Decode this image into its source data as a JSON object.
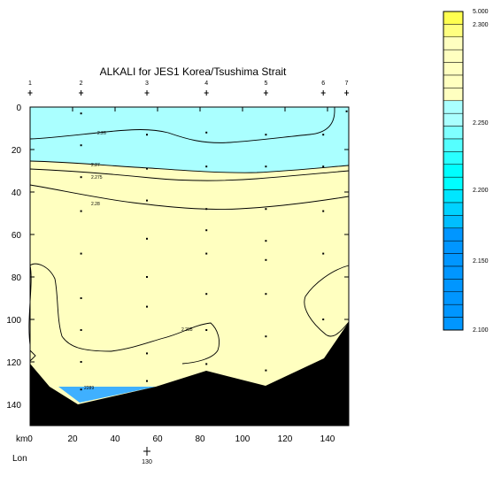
{
  "chart_data": {
    "type": "contour_section",
    "title": "ALKALI for JES1 Korea/Tsushima Strait",
    "x_unit_label": "km",
    "x_ticks": [
      0,
      20,
      40,
      60,
      80,
      100,
      120,
      140
    ],
    "x_range": [
      0,
      150
    ],
    "y_ticks": [
      0,
      20,
      40,
      60,
      80,
      100,
      120,
      140
    ],
    "y_range": [
      0,
      150
    ],
    "y_inverted": true,
    "lon_label": "Lon",
    "lon_tick": {
      "km": 55,
      "label": "130"
    },
    "stations": [
      {
        "label": "1",
        "km": 0
      },
      {
        "label": "2",
        "km": 24
      },
      {
        "label": "3",
        "km": 55
      },
      {
        "label": "4",
        "km": 83
      },
      {
        "label": "5",
        "km": 111
      },
      {
        "label": "6",
        "km": 138
      },
      {
        "label": "7",
        "km": 149
      }
    ],
    "sample_points": [
      [
        24,
        3
      ],
      [
        24,
        18
      ],
      [
        24,
        33
      ],
      [
        24,
        49
      ],
      [
        24,
        69
      ],
      [
        24,
        90
      ],
      [
        24,
        105
      ],
      [
        24,
        120
      ],
      [
        24,
        133
      ],
      [
        55,
        13
      ],
      [
        55,
        29
      ],
      [
        55,
        44
      ],
      [
        55,
        62
      ],
      [
        55,
        80
      ],
      [
        55,
        94
      ],
      [
        55,
        116
      ],
      [
        55,
        129
      ],
      [
        83,
        12
      ],
      [
        83,
        28
      ],
      [
        83,
        48
      ],
      [
        83,
        58
      ],
      [
        83,
        69
      ],
      [
        83,
        88
      ],
      [
        83,
        105
      ],
      [
        83,
        121
      ],
      [
        111,
        13
      ],
      [
        111,
        28
      ],
      [
        111,
        48
      ],
      [
        111,
        63
      ],
      [
        111,
        72
      ],
      [
        111,
        88
      ],
      [
        111,
        108
      ],
      [
        111,
        124
      ],
      [
        138,
        13
      ],
      [
        138,
        28
      ],
      [
        138,
        49
      ],
      [
        138,
        69
      ],
      [
        138,
        100
      ],
      [
        149,
        2
      ]
    ],
    "contour_labels": [
      "2.26",
      "2.27",
      "2.275",
      "2.28",
      "2.285",
      "2289"
    ],
    "fills": [
      {
        "name": "upper layer",
        "color": "#aaffff"
      },
      {
        "name": "main layer",
        "color": "#ffffc0"
      },
      {
        "name": "bottom pocket",
        "color": "#3fb0ff"
      },
      {
        "name": "seafloor",
        "color": "#000000"
      }
    ],
    "colorbar": {
      "tick_labels": [
        "5.000",
        "2.300",
        "2.250",
        "2.200",
        "2.150",
        "2.100"
      ],
      "colors_top_to_bottom": [
        "#ffff50",
        "#ffff80",
        "#ffffc0",
        "#ffffc0",
        "#ffffc0",
        "#ffffc0",
        "#ffffc0",
        "#aaffff",
        "#aaffff",
        "#7fffff",
        "#55ffff",
        "#2affff",
        "#00ffff",
        "#00ffff",
        "#00e6ff",
        "#00d2ff",
        "#00beff",
        "#0096ff",
        "#0096ff",
        "#0096ff",
        "#0096ff",
        "#0096ff",
        "#0096ff",
        "#0096ff",
        "#0096ff"
      ]
    }
  }
}
